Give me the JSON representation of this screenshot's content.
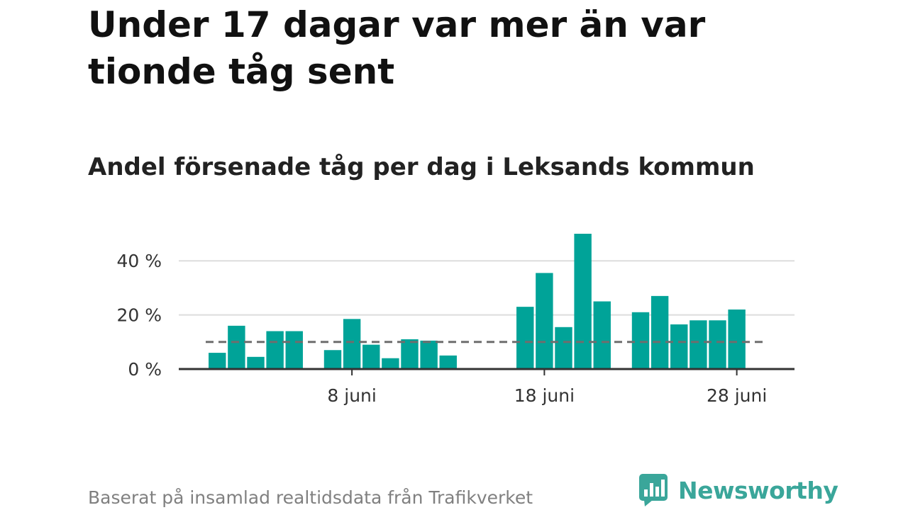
{
  "title": "Under 17 dagar var mer än var tionde tåg sent",
  "subtitle": "Andel försenade tåg per dag i Leksands kommun",
  "footer": {
    "source": "Baserat på insamlad realtidsdata från Trafikverket",
    "brand": "Newsworthy",
    "brand_icon": "newsworthy-logo-icon",
    "brand_color": "#3aa69a"
  },
  "chart_data": {
    "type": "bar",
    "x_unit": "day of June",
    "x": [
      1,
      2,
      3,
      4,
      5,
      7,
      8,
      9,
      10,
      11,
      12,
      13,
      17,
      18,
      19,
      20,
      21,
      23,
      24,
      25,
      26,
      27,
      28
    ],
    "values": [
      6,
      16,
      4.5,
      14,
      14,
      7,
      18.5,
      9,
      4,
      11,
      10.5,
      5,
      23,
      35.5,
      15.5,
      50,
      25,
      21,
      27,
      16.5,
      18,
      18,
      22
    ],
    "reference_line": {
      "value": 10,
      "style": "dashed",
      "color": "#6e6e6e"
    },
    "yticks": [
      {
        "value": 0,
        "label": "0 %"
      },
      {
        "value": 20,
        "label": "20 %"
      },
      {
        "value": 40,
        "label": "40 %"
      }
    ],
    "xticks": [
      {
        "value": 8,
        "label": "8 juni"
      },
      {
        "value": 18,
        "label": "18 juni"
      },
      {
        "value": 28,
        "label": "28 juni"
      }
    ],
    "ylim": [
      0,
      50
    ],
    "xlim": [
      -1,
      31
    ],
    "grid": "horizontal",
    "bar_color": "#00a398",
    "gridline_color": "#dddddd",
    "axis_color": "#333333"
  }
}
